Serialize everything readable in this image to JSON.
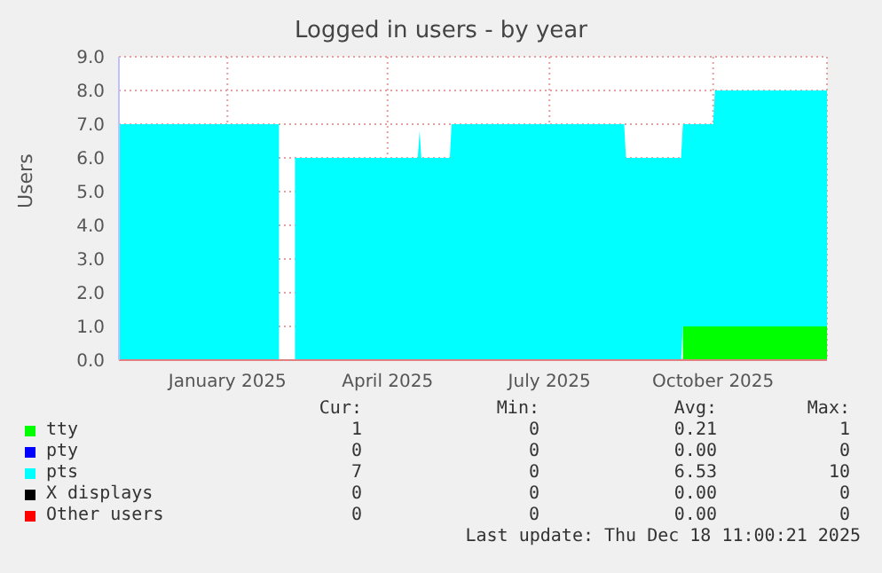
{
  "chart_data": {
    "type": "area",
    "title": "Logged in users - by year",
    "ylabel": "Users",
    "stacked": true,
    "grid": true,
    "legend": "bottom",
    "x": [
      "2024-11-15",
      "2025-02-13",
      "2025-02-14",
      "2025-02-21",
      "2025-02-22",
      "2025-05-02",
      "2025-05-03",
      "2025-05-04",
      "2025-05-20",
      "2025-05-21",
      "2025-08-26",
      "2025-08-27",
      "2025-09-27",
      "2025-09-28",
      "2025-10-15",
      "2025-10-16",
      "2025-12-18"
    ],
    "xlim": [
      "2024-11-15",
      "2025-12-18"
    ],
    "xticks": [
      {
        "value": "2025-01-15",
        "label": "January 2025"
      },
      {
        "value": "2025-04-15",
        "label": "April 2025"
      },
      {
        "value": "2025-07-15",
        "label": "July 2025"
      },
      {
        "value": "2025-10-15",
        "label": "October 2025"
      }
    ],
    "ylim": [
      0,
      9
    ],
    "yticks": [
      {
        "value": 0,
        "label": "0.0"
      },
      {
        "value": 1,
        "label": "1.0"
      },
      {
        "value": 2,
        "label": "2.0"
      },
      {
        "value": 3,
        "label": "3.0"
      },
      {
        "value": 4,
        "label": "4.0"
      },
      {
        "value": 5,
        "label": "5.0"
      },
      {
        "value": 6,
        "label": "6.0"
      },
      {
        "value": 7,
        "label": "7.0"
      },
      {
        "value": 8,
        "label": "8.0"
      },
      {
        "value": 9,
        "label": "9.0"
      }
    ],
    "series": [
      {
        "name": "tty",
        "color": "#00ff00",
        "values": [
          null,
          null,
          null,
          null,
          null,
          null,
          null,
          null,
          null,
          null,
          null,
          null,
          null,
          1,
          1,
          1,
          1
        ]
      },
      {
        "name": "pty",
        "color": "#0000ff",
        "values": [
          null,
          null,
          null,
          null,
          null,
          null,
          null,
          null,
          null,
          null,
          null,
          null,
          null,
          null,
          null,
          null,
          null
        ]
      },
      {
        "name": "pts",
        "color": "#00ffff",
        "values": [
          7,
          7,
          null,
          null,
          6,
          6,
          6.8,
          6,
          6,
          7,
          7,
          6,
          6,
          6,
          6,
          7,
          7
        ]
      },
      {
        "name": "X displays",
        "color": "#000000",
        "values": [
          null,
          null,
          null,
          null,
          null,
          null,
          null,
          null,
          null,
          null,
          null,
          null,
          null,
          null,
          null,
          null,
          null
        ]
      },
      {
        "name": "Other users",
        "color": "#ff0000",
        "values": [
          null,
          null,
          null,
          null,
          null,
          null,
          null,
          null,
          null,
          null,
          null,
          null,
          null,
          null,
          null,
          null,
          null
        ]
      }
    ],
    "annotations": [
      "Cur:",
      "Min:",
      "Avg:",
      "Max:",
      "1",
      "0",
      "0.21",
      "1",
      "0",
      "0",
      "0.00",
      "0",
      "7",
      "0",
      "6.53",
      "10",
      "0",
      "0",
      "0.00",
      "0",
      "0",
      "0",
      "0.00",
      "0",
      "Last update: Thu Dec 18 11:00:21 2025"
    ]
  }
}
